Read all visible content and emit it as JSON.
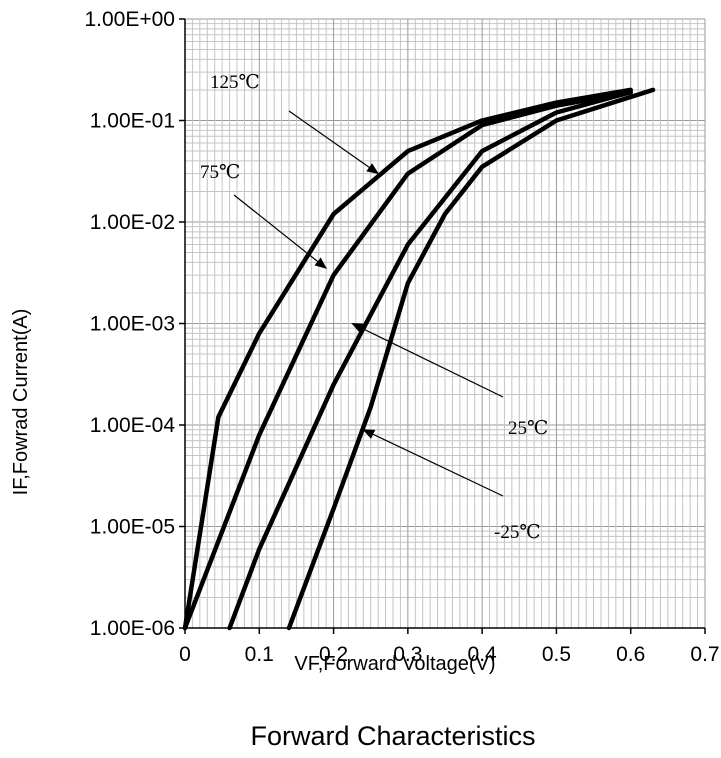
{
  "chart_data": {
    "type": "line",
    "title": "Forward Characteristics",
    "xlabel": "VF,Forward Voltage(V)",
    "ylabel": "IF,Fowrad Current(A)",
    "xlim": [
      0,
      0.7
    ],
    "ylim": [
      1e-06,
      1
    ],
    "yscale": "log",
    "grid": true,
    "x_ticks": [
      "0",
      "0.1",
      "0.2",
      "0.3",
      "0.4",
      "0.5",
      "0.6",
      "0.7"
    ],
    "y_ticks": [
      "1.00E-06",
      "1.00E-05",
      "1.00E-04",
      "1.00E-03",
      "1.00E-02",
      "1.00E-01",
      "1.00E+00"
    ],
    "series": [
      {
        "name": "125℃",
        "x": [
          0,
          0.045,
          0.1,
          0.2,
          0.3,
          0.4,
          0.5,
          0.6
        ],
        "y": [
          1e-06,
          0.00012,
          0.0008,
          0.012,
          0.05,
          0.1,
          0.15,
          0.2
        ]
      },
      {
        "name": "75℃",
        "x": [
          0,
          0.1,
          0.2,
          0.3,
          0.4,
          0.5,
          0.6
        ],
        "y": [
          1e-06,
          8e-05,
          0.003,
          0.03,
          0.09,
          0.14,
          0.19
        ]
      },
      {
        "name": "25℃",
        "x": [
          0.06,
          0.1,
          0.2,
          0.3,
          0.4,
          0.5,
          0.6
        ],
        "y": [
          1e-06,
          6e-06,
          0.00025,
          0.006,
          0.05,
          0.12,
          0.19
        ]
      },
      {
        "name": "-25℃",
        "x": [
          0.14,
          0.2,
          0.25,
          0.3,
          0.35,
          0.4,
          0.5,
          0.63
        ],
        "y": [
          1e-06,
          1.5e-05,
          0.00015,
          0.0025,
          0.012,
          0.035,
          0.1,
          0.2
        ]
      }
    ],
    "annotations": [
      {
        "text": "125℃",
        "target_x": 0.26,
        "target_y": 0.03
      },
      {
        "text": "75℃",
        "target_x": 0.19,
        "target_y": 0.0035
      },
      {
        "text": "25℃",
        "target_x": 0.225,
        "target_y": 0.001
      },
      {
        "text": "-25℃",
        "target_x": 0.24,
        "target_y": 9e-05
      }
    ]
  }
}
